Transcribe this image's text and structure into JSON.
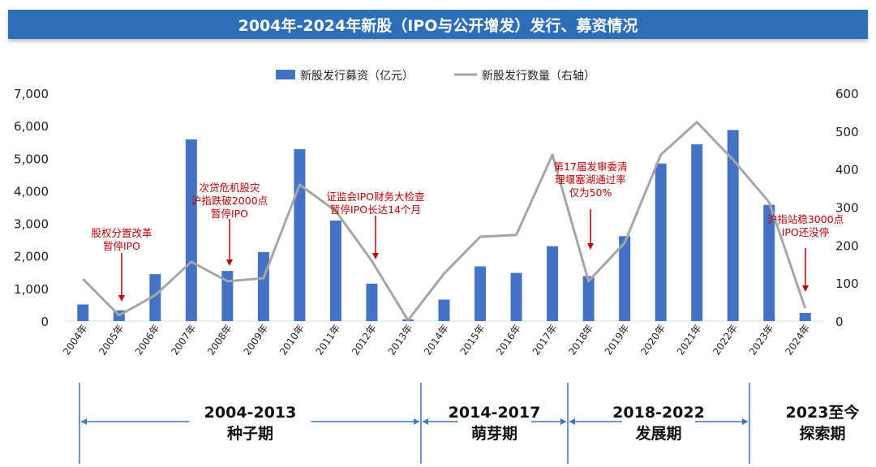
{
  "title": "2004年-2024年新股（IPO与公开增发）发行、募资情况",
  "chart_data": {
    "type": "bar+line",
    "categories": [
      "2004年",
      "2005年",
      "2006年",
      "2007年",
      "2008年",
      "2009年",
      "2010年",
      "2011年",
      "2012年",
      "2013年",
      "2014年",
      "2015年",
      "2016年",
      "2017年",
      "2018年",
      "2019年",
      "2020年",
      "2021年",
      "2022年",
      "2023年",
      "2024年"
    ],
    "series": [
      {
        "name": "新股发行募资（亿元）",
        "type": "bar",
        "axis": "left",
        "color": "#4472c4",
        "values": [
          510,
          330,
          1440,
          5580,
          1540,
          2120,
          5280,
          3090,
          1150,
          50,
          660,
          1680,
          1480,
          2300,
          1380,
          2610,
          4840,
          5430,
          5870,
          3570,
          250
        ]
      },
      {
        "name": "新股发行数量（右轴）",
        "type": "line",
        "axis": "right",
        "color": "#a6a6a6",
        "values": [
          111,
          15,
          68,
          156,
          105,
          113,
          359,
          290,
          158,
          2,
          125,
          222,
          227,
          438,
          105,
          206,
          438,
          524,
          425,
          313,
          34
        ]
      }
    ],
    "left_axis": {
      "ylim": [
        0,
        7000
      ],
      "ticks": [
        "0",
        "1,000",
        "2,000",
        "3,000",
        "4,000",
        "5,000",
        "6,000",
        "7,000"
      ]
    },
    "right_axis": {
      "ylim": [
        0,
        600
      ],
      "ticks": [
        "0",
        "100",
        "200",
        "300",
        "400",
        "500",
        "600"
      ]
    },
    "legend_position": "top",
    "annotations": [
      {
        "year": "2005年",
        "lines": [
          "股权分置改革",
          "暂停IPO"
        ]
      },
      {
        "year": "2008年",
        "lines": [
          "次贷危机股灾",
          "沪指跌破2000点",
          "暂停IPO"
        ]
      },
      {
        "year": "2012年",
        "lines": [
          "证监会IPO财务大检查",
          "暂停IPO长达14个月"
        ]
      },
      {
        "year": "2018年",
        "lines": [
          "第17届发审委清",
          "理堰塞湖通过率",
          "仅为50%"
        ]
      },
      {
        "year": "2024年",
        "lines": [
          "沪指站稳3000点",
          "IPO还没停"
        ]
      }
    ],
    "annotation_color": "#c00000",
    "phases": [
      {
        "range": "2004-2013",
        "name": "种子期"
      },
      {
        "range": "2014-2017",
        "name": "萌芽期"
      },
      {
        "range": "2018-2022",
        "name": "发展期"
      },
      {
        "range": "2023至今",
        "name": "探索期"
      }
    ]
  }
}
